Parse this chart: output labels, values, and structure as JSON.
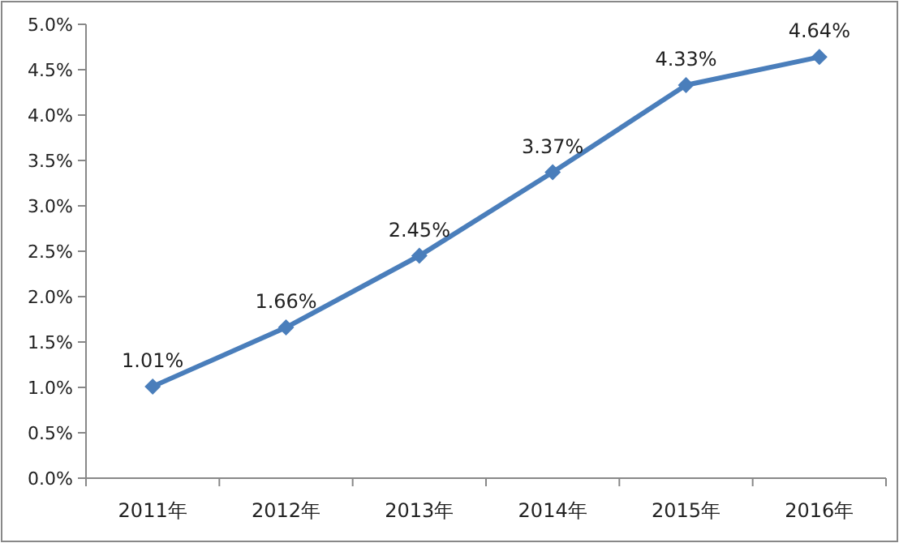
{
  "chart_data": {
    "type": "line",
    "categories": [
      "2011年",
      "2012年",
      "2013年",
      "2014年",
      "2015年",
      "2016年"
    ],
    "series": [
      {
        "color": "#4a7ebb",
        "values": [
          1.01,
          1.66,
          2.45,
          3.37,
          4.33,
          4.64
        ],
        "value_labels": [
          "1.01%",
          "1.66%",
          "2.45%",
          "3.37%",
          "4.33%",
          "4.64%"
        ]
      }
    ],
    "ylim": [
      0,
      5
    ],
    "yticks": [
      {
        "value": 0,
        "label": "0.0%"
      },
      {
        "value": 0.5,
        "label": "0.5%"
      },
      {
        "value": 1,
        "label": "1.0%"
      },
      {
        "value": 1.5,
        "label": "1.5%"
      },
      {
        "value": 2,
        "label": "2.0%"
      },
      {
        "value": 2.5,
        "label": "2.5%"
      },
      {
        "value": 3,
        "label": "3.0%"
      },
      {
        "value": 3.5,
        "label": "3.5%"
      },
      {
        "value": 4,
        "label": "4.0%"
      },
      {
        "value": 4.5,
        "label": "4.5%"
      },
      {
        "value": 5,
        "label": "5.0%"
      }
    ],
    "marker": "diamond",
    "line_style": "solid",
    "grid": false
  }
}
